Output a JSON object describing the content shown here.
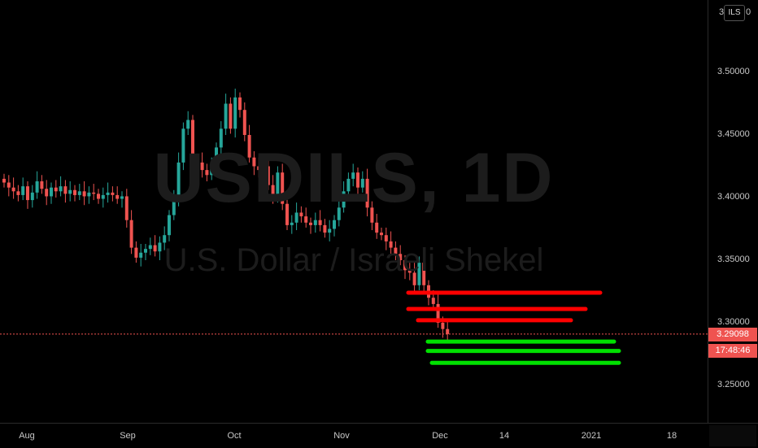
{
  "chart_data": {
    "type": "candlestick",
    "symbol": "USDILS, 1D",
    "description": "U.S. Dollar / Israeli Shekel",
    "price_axis": {
      "ticks": [
        "3.50000",
        "3.45000",
        "3.40000",
        "3.35000",
        "3.30000",
        "3.25000"
      ],
      "top_partial": "3.",
      "top_partial_end": "0",
      "currency_badge": "ILS",
      "ylim": [
        3.21,
        3.555
      ]
    },
    "time_axis": {
      "ticks": [
        "Aug",
        "Sep",
        "Oct",
        "Nov",
        "Dec",
        "14",
        "2021",
        "18"
      ]
    },
    "last_price": "3.29098",
    "countdown": "17:48:46",
    "colors": {
      "up": "#26a69a",
      "down": "#ef5350",
      "sell_level": "#ff0000",
      "buy_level": "#00e000",
      "last_line": "#ef5350"
    },
    "sell_levels": [
      3.324,
      3.311,
      3.302
    ],
    "buy_levels": [
      3.285,
      3.2775,
      3.268
    ],
    "closes": [
      3.412,
      3.408,
      3.405,
      3.402,
      3.409,
      3.398,
      3.404,
      3.413,
      3.407,
      3.401,
      3.408,
      3.405,
      3.409,
      3.403,
      3.406,
      3.402,
      3.405,
      3.401,
      3.404,
      3.403,
      3.399,
      3.402,
      3.404,
      3.402,
      3.399,
      3.401,
      3.382,
      3.36,
      3.352,
      3.356,
      3.359,
      3.362,
      3.357,
      3.364,
      3.37,
      3.386,
      3.4,
      3.428,
      3.455,
      3.462,
      3.42,
      3.428,
      3.422,
      3.418,
      3.425,
      3.44,
      3.455,
      3.475,
      3.455,
      3.48,
      3.47,
      3.45,
      3.432,
      3.425,
      3.422,
      3.425,
      3.41,
      3.402,
      3.42,
      3.395,
      3.378,
      3.38,
      3.388,
      3.385,
      3.38,
      3.378,
      3.382,
      3.378,
      3.372,
      3.375,
      3.382,
      3.392,
      3.405,
      3.415,
      3.42,
      3.408,
      3.415,
      3.392,
      3.38,
      3.372,
      3.37,
      3.365,
      3.36,
      3.355,
      3.35,
      3.342,
      3.34,
      3.33,
      3.348,
      3.33,
      3.32,
      3.315,
      3.3,
      3.295,
      3.291
    ]
  }
}
